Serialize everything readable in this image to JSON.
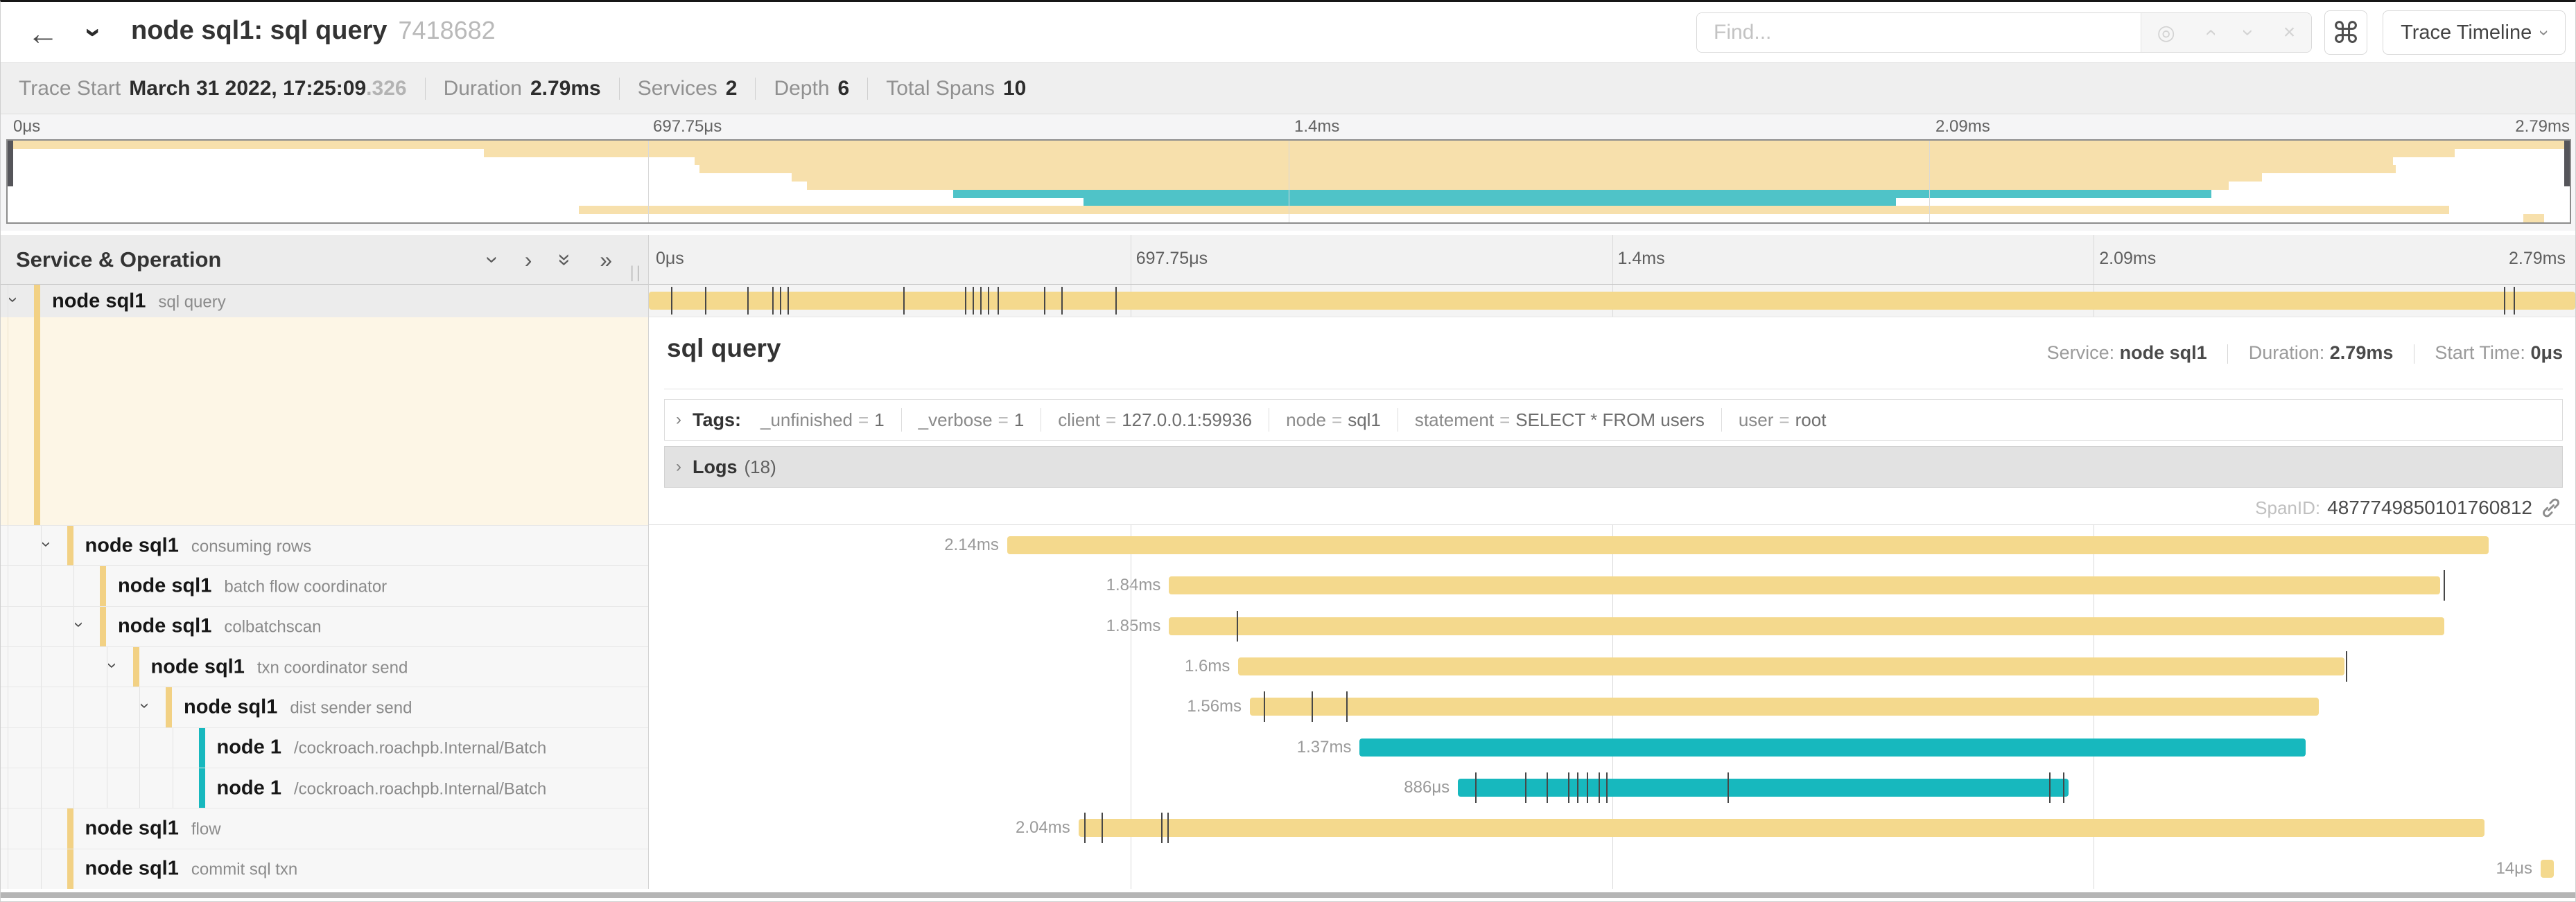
{
  "header": {
    "title": "node sql1: sql query",
    "trace_id": "7418682",
    "find_placeholder": "Find...",
    "shortcut_icon": "⌘",
    "view_selector": "Trace Timeline"
  },
  "icons": {
    "back": "←",
    "chevron": "›",
    "chevron_double": "»",
    "find_buttons": [
      {
        "name": "match-target-icon",
        "glyph": "◎",
        "rot": 0
      },
      {
        "name": "prev-match-icon",
        "glyph": "›",
        "rot": -90
      },
      {
        "name": "next-match-icon",
        "glyph": "›",
        "rot": 90
      },
      {
        "name": "clear-find-icon",
        "glyph": "×",
        "rot": 0
      }
    ],
    "grid_buttons": [
      {
        "name": "collapse-one-icon",
        "glyph": "›",
        "rot": 90
      },
      {
        "name": "expand-one-icon",
        "glyph": "›",
        "rot": 0
      },
      {
        "name": "collapse-all-icon",
        "glyph": "»",
        "rot": 90
      },
      {
        "name": "expand-all-icon",
        "glyph": "»",
        "rot": 0
      }
    ],
    "resizer": "||"
  },
  "trace_info": {
    "items": [
      {
        "label": "Trace Start",
        "value": "March 31 2022, 17:25:09",
        "suffix": ".326"
      },
      {
        "label": "Duration",
        "value": "2.79ms",
        "suffix": ""
      },
      {
        "label": "Services",
        "value": "2",
        "suffix": ""
      },
      {
        "label": "Depth",
        "value": "6",
        "suffix": ""
      },
      {
        "label": "Total Spans",
        "value": "10",
        "suffix": ""
      }
    ]
  },
  "ruler": {
    "ticks": [
      "0μs",
      "697.75μs",
      "1.4ms",
      "2.09ms",
      "2.79ms"
    ],
    "positions": [
      0,
      25,
      50,
      75,
      100
    ]
  },
  "left_header": "Service & Operation",
  "detail": {
    "title": "sql query",
    "service_label": "Service:",
    "service": "node sql1",
    "duration_label": "Duration:",
    "duration": "2.79ms",
    "start_label": "Start Time:",
    "start": "0μs",
    "tags_label": "Tags:",
    "tags": [
      {
        "key": "_unfinished",
        "value": "1"
      },
      {
        "key": "_verbose",
        "value": "1"
      },
      {
        "key": "client",
        "value": "127.0.0.1:59936"
      },
      {
        "key": "node",
        "value": "sql1"
      },
      {
        "key": "statement",
        "value": "SELECT * FROM users"
      },
      {
        "key": "user",
        "value": "root"
      }
    ],
    "logs_label": "Logs",
    "logs_count": "(18)",
    "spanid_label": "SpanID:",
    "spanid": "4877749850101760812"
  },
  "colors": {
    "tan": "#f4d98d",
    "teal": "#17b8be",
    "accent_tan": "#f2d184",
    "accent_teal": "#17b8be",
    "minimap_tan": "#f7e0ac",
    "minimap_teal": "#4fc3c8"
  },
  "spans": [
    {
      "service": "node sql1",
      "operation": "sql query",
      "depth": 0,
      "expandable": true,
      "color": "tan",
      "start": 0,
      "end": 100,
      "duration": "",
      "ticks": [
        1.15,
        2.9,
        5.1,
        6.4,
        6.8,
        7.2,
        13.2,
        16.4,
        16.8,
        17.2,
        17.6,
        18.1,
        20.5,
        21.4,
        24.2,
        96.3,
        96.8
      ]
    },
    {
      "service": "node sql1",
      "operation": "consuming rows",
      "depth": 1,
      "expandable": true,
      "color": "tan",
      "start": 18.6,
      "end": 95.5,
      "duration": "2.14ms",
      "ticks": []
    },
    {
      "service": "node sql1",
      "operation": "batch flow coordinator",
      "depth": 2,
      "expandable": false,
      "color": "tan",
      "start": 27.0,
      "end": 93.0,
      "duration": "1.84ms",
      "ticks": [
        93.15
      ]
    },
    {
      "service": "node sql1",
      "operation": "colbatchscan",
      "depth": 2,
      "expandable": true,
      "color": "tan",
      "start": 27.0,
      "end": 93.2,
      "duration": "1.85ms",
      "ticks": [
        30.5
      ]
    },
    {
      "service": "node sql1",
      "operation": "txn coordinator send",
      "depth": 3,
      "expandable": true,
      "color": "tan",
      "start": 30.6,
      "end": 88.0,
      "duration": "1.6ms",
      "ticks": [
        88.1
      ]
    },
    {
      "service": "node sql1",
      "operation": "dist sender send",
      "depth": 4,
      "expandable": true,
      "color": "tan",
      "start": 31.2,
      "end": 86.7,
      "duration": "1.56ms",
      "ticks": [
        31.9,
        34.4,
        36.2
      ]
    },
    {
      "service": "node 1",
      "operation": "/cockroach.roachpb.Internal/Batch",
      "depth": 5,
      "expandable": false,
      "color": "teal",
      "start": 36.9,
      "end": 86.0,
      "duration": "1.37ms",
      "ticks": []
    },
    {
      "service": "node 1",
      "operation": "/cockroach.roachpb.Internal/Batch",
      "depth": 5,
      "expandable": false,
      "color": "teal",
      "start": 42.0,
      "end": 73.7,
      "duration": "886μs",
      "ticks": [
        42.9,
        45.5,
        46.6,
        47.7,
        48.2,
        48.7,
        49.3,
        49.7,
        56.0,
        72.7,
        73.4
      ]
    },
    {
      "service": "node sql1",
      "operation": "flow",
      "depth": 1,
      "expandable": false,
      "color": "tan",
      "start": 22.3,
      "end": 95.3,
      "duration": "2.04ms",
      "ticks": [
        22.6,
        23.5,
        26.6,
        26.9
      ]
    },
    {
      "service": "node sql1",
      "operation": "commit sql txn",
      "depth": 1,
      "expandable": false,
      "color": "tan",
      "start": 98.2,
      "end": 98.9,
      "duration": "14μs",
      "ticks": []
    }
  ],
  "minimap": {
    "rows": [
      [
        0,
        100,
        "tan"
      ],
      [
        18.6,
        95.5,
        "tan"
      ],
      [
        26.8,
        93.1,
        "tan"
      ],
      [
        27.0,
        93.2,
        "tan"
      ],
      [
        30.6,
        88.0,
        "tan"
      ],
      [
        31.2,
        86.7,
        "tan"
      ],
      [
        36.9,
        86.0,
        "teal"
      ],
      [
        42.0,
        73.7,
        "teal"
      ],
      [
        22.3,
        95.3,
        "tan"
      ],
      [
        98.2,
        99.0,
        "tan"
      ]
    ]
  }
}
